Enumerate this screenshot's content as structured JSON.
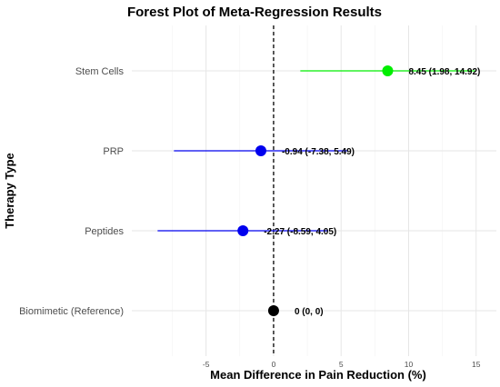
{
  "chart_data": {
    "type": "forest",
    "title": "Forest Plot of Meta-Regression Results",
    "xlabel": "Mean Difference in Pain Reduction (%)",
    "ylabel": "Therapy Type",
    "xlim": [
      -10.5,
      16.5
    ],
    "xticks": [
      -5,
      0,
      5,
      10,
      15
    ],
    "xtick_labels": [
      "-5",
      "0",
      "5",
      "10",
      "15"
    ],
    "reference_x": 0,
    "grid": true,
    "rows": [
      {
        "label": "Stem Cells",
        "estimate": 8.45,
        "lower": 1.98,
        "upper": 14.92,
        "color": "#00ee00",
        "annotation": "8.45 (1.98, 14.92)"
      },
      {
        "label": "PRP",
        "estimate": -0.94,
        "lower": -7.38,
        "upper": 5.49,
        "color": "#0000ee",
        "annotation": "-0.94 (-7.38, 5.49)"
      },
      {
        "label": "Peptides",
        "estimate": -2.27,
        "lower": -8.59,
        "upper": 4.05,
        "color": "#0000ee",
        "annotation": "-2.27 (-8.59, 4.05)"
      },
      {
        "label": "Biomimetic (Reference)",
        "estimate": 0,
        "lower": 0,
        "upper": 0,
        "color": "#000000",
        "annotation": "0 (0, 0)"
      }
    ]
  }
}
